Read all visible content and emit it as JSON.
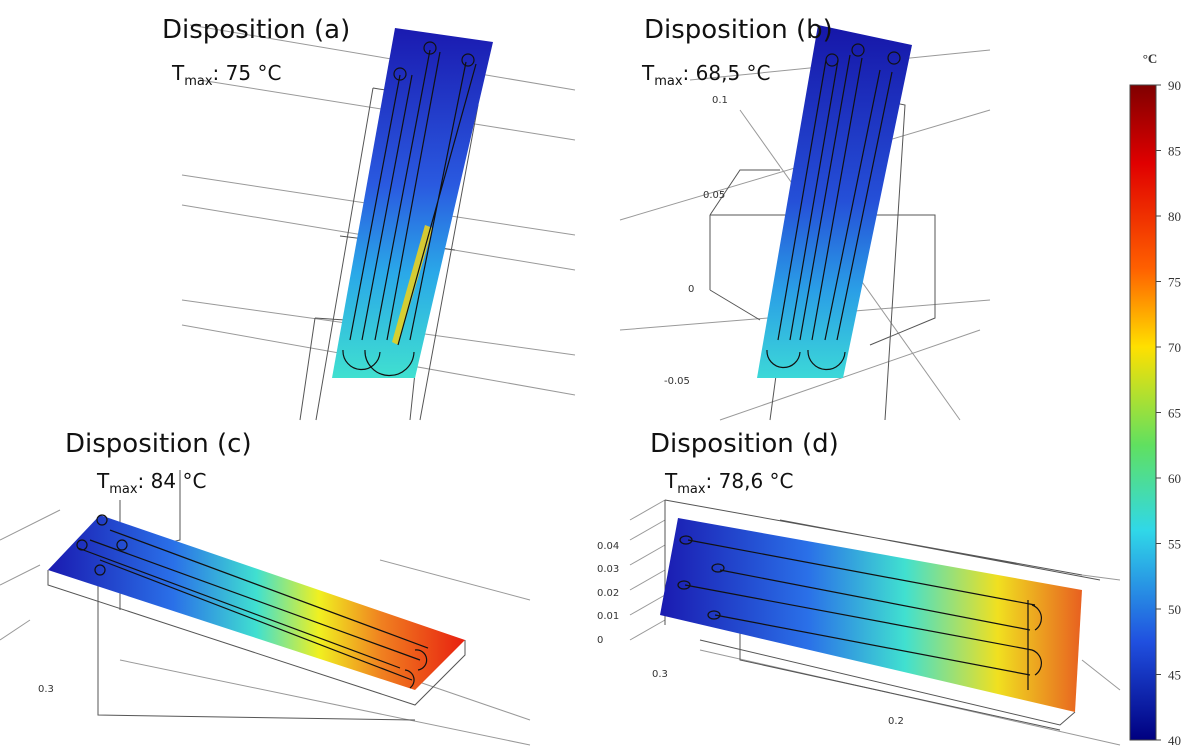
{
  "panels": [
    {
      "title": "Disposition (a)",
      "tmax": {
        "symbol": "T",
        "subscript": "max",
        "value": ": 75 °C"
      },
      "axis_labels": []
    },
    {
      "title": "Disposition (b)",
      "tmax": {
        "symbol": "T",
        "subscript": "max",
        "value": ": 68,5 °C"
      },
      "axis_labels": [
        "0.1",
        "0.05",
        "0",
        "-0.05"
      ]
    },
    {
      "title": "Disposition (c)",
      "tmax": {
        "symbol": "T",
        "subscript": "max",
        "value": ": 84 °C"
      },
      "axis_labels": [
        "0.3"
      ]
    },
    {
      "title": "Disposition (d)",
      "tmax": {
        "symbol": "T",
        "subscript": "max",
        "value": ": 78,6 °C"
      },
      "axis_labels": [
        "0.04",
        "0.03",
        "0.02",
        "0.01",
        "0",
        "0.3",
        "0.2"
      ]
    }
  ],
  "colorbar": {
    "unit": "°C",
    "ticks": [
      90,
      85,
      80,
      75,
      70,
      65,
      60,
      55,
      50,
      45,
      40
    ]
  }
}
